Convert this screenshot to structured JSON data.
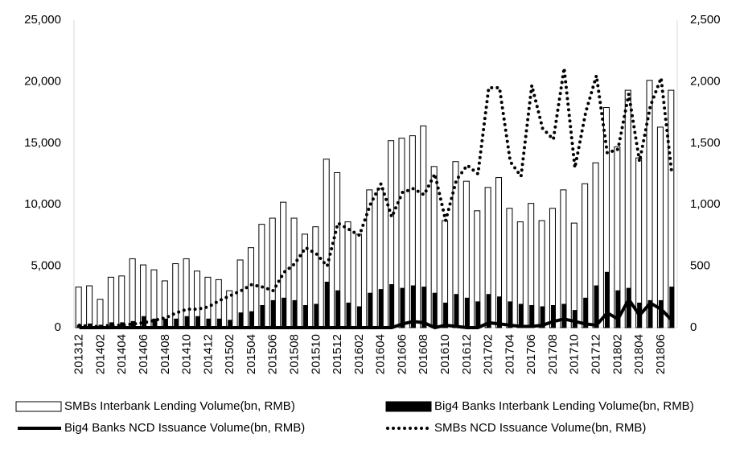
{
  "chart_data": {
    "type": "bar-line",
    "categories": [
      "201312",
      null,
      "201402",
      null,
      "201404",
      null,
      "201406",
      null,
      "201408",
      null,
      "201410",
      null,
      "201412",
      null,
      "201502",
      null,
      "201504",
      null,
      "201506",
      null,
      "201508",
      null,
      "201510",
      null,
      "201512",
      null,
      "201602",
      null,
      "201604",
      null,
      "201606",
      null,
      "201608",
      null,
      "201610",
      null,
      "201612",
      null,
      "201702",
      null,
      "201704",
      null,
      "201706",
      null,
      "201708",
      null,
      "201710",
      null,
      "201712",
      null,
      "201802",
      null,
      "201804",
      null,
      "201806",
      null
    ],
    "series": [
      {
        "name": "SMBs Interbank Lending Volume(bn, RMB)",
        "kind": "bar",
        "color": "#ffffff",
        "axis": "y",
        "values": [
          3300,
          3400,
          2300,
          4100,
          4200,
          5600,
          5100,
          4700,
          3800,
          5200,
          5600,
          4600,
          4100,
          3900,
          3000,
          5500,
          6500,
          8400,
          8900,
          10200,
          8900,
          7600,
          8200,
          13700,
          12600,
          8600,
          7600,
          11200,
          11300,
          15200,
          15400,
          15600,
          16400,
          13100,
          8700,
          13500,
          11900,
          9500,
          11400,
          12200,
          9700,
          8600,
          10100,
          8700,
          9700,
          11200,
          8500,
          11700,
          13400,
          17900,
          14700,
          19300,
          13800,
          20100,
          16300,
          19300
        ]
      },
      {
        "name": "Big4 Banks Interbank Lending Volume(bn, RMB)",
        "kind": "bar",
        "color": "#000000",
        "axis": "y",
        "values": [
          200,
          300,
          200,
          400,
          400,
          500,
          900,
          700,
          700,
          700,
          900,
          900,
          700,
          700,
          600,
          1200,
          1300,
          1800,
          2200,
          2400,
          2200,
          1800,
          1900,
          3700,
          3000,
          2000,
          1700,
          2800,
          3100,
          3500,
          3200,
          3400,
          3300,
          2800,
          2000,
          2700,
          2400,
          2100,
          2700,
          2500,
          2100,
          1900,
          1800,
          1700,
          1800,
          1900,
          1400,
          2400,
          3400,
          4500,
          3000,
          3200,
          2000,
          2200,
          2200,
          3300
        ]
      },
      {
        "name": "Big4 Banks NCD Issuance Volume(bn, RMB)",
        "kind": "line",
        "line_style": "solid",
        "color": "#000000",
        "axis": "y2",
        "values": [
          0,
          0,
          0,
          0,
          0,
          0,
          0,
          0,
          0,
          0,
          0,
          0,
          0,
          0,
          0,
          0,
          0,
          0,
          0,
          0,
          0,
          0,
          0,
          0,
          0,
          0,
          0,
          0,
          0,
          0,
          30,
          50,
          40,
          0,
          20,
          10,
          0,
          0,
          40,
          30,
          20,
          10,
          10,
          20,
          50,
          70,
          50,
          30,
          20,
          120,
          70,
          230,
          100,
          200,
          150,
          60
        ]
      },
      {
        "name": "SMBs NCD Issuance Volume(bn, RMB)",
        "kind": "line",
        "line_style": "dotted",
        "color": "#000000",
        "axis": "y2",
        "values": [
          20,
          10,
          10,
          20,
          20,
          30,
          40,
          60,
          80,
          120,
          150,
          150,
          170,
          220,
          260,
          300,
          350,
          330,
          300,
          450,
          520,
          650,
          600,
          500,
          850,
          800,
          750,
          1000,
          1170,
          900,
          1100,
          1130,
          1080,
          1250,
          870,
          1200,
          1320,
          1250,
          1950,
          1950,
          1350,
          1230,
          1970,
          1620,
          1530,
          2110,
          1300,
          1750,
          2050,
          1420,
          1450,
          1900,
          1350,
          1800,
          2030,
          1250
        ]
      }
    ],
    "ylim": [
      0,
      25000
    ],
    "yticks": [
      0,
      {
        "value": 5000,
        "label": "5,000"
      },
      {
        "value": 10000,
        "label": "10,000"
      },
      {
        "value": 15000,
        "label": "15,000"
      },
      {
        "value": 20000,
        "label": "20,000"
      },
      {
        "value": 25000,
        "label": "25,000"
      }
    ],
    "y2lim": [
      0,
      2500
    ],
    "y2ticks": [
      0,
      500,
      {
        "value": 1000,
        "label": "1,000"
      },
      {
        "value": 1500,
        "label": "1,500"
      },
      {
        "value": 2000,
        "label": "2,000"
      },
      {
        "value": 2500,
        "label": "2,500"
      }
    ],
    "legend": "bottom"
  }
}
